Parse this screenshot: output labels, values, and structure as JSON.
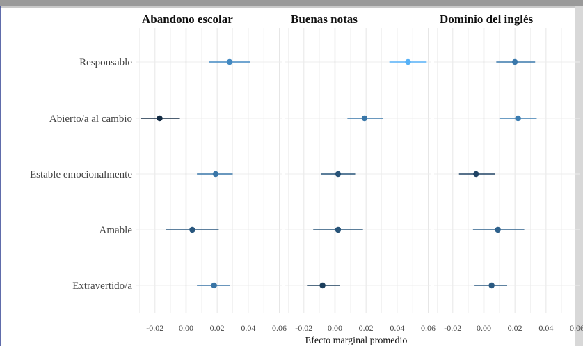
{
  "chart_data": {
    "type": "scatter",
    "style": "dot-and-whisker",
    "xlabel": "Efecto marginal promedio",
    "ylabel": "",
    "xlim": [
      -0.032,
      0.062
    ],
    "xticks": [
      -0.02,
      0.0,
      0.02,
      0.04,
      0.06
    ],
    "xtick_labels": [
      "-0.02",
      "0.00",
      "0.02",
      "0.04",
      "0.06"
    ],
    "categories": [
      "Responsable",
      "Abierto/a al cambio",
      "Estable emocionalmente",
      "Amable",
      "Extravertido/a"
    ],
    "grid": true,
    "zero_line": true,
    "color_scale": {
      "low": "#132b43",
      "high": "#56b1f7"
    },
    "panels": [
      {
        "title": "Abandono escolar",
        "points": [
          {
            "category": "Responsable",
            "estimate": 0.028,
            "lower": 0.015,
            "upper": 0.041
          },
          {
            "category": "Abierto/a al cambio",
            "estimate": -0.017,
            "lower": -0.029,
            "upper": -0.004
          },
          {
            "category": "Estable emocionalmente",
            "estimate": 0.019,
            "lower": 0.007,
            "upper": 0.03
          },
          {
            "category": "Amable",
            "estimate": 0.004,
            "lower": -0.013,
            "upper": 0.021
          },
          {
            "category": "Extravertido/a",
            "estimate": 0.018,
            "lower": 0.007,
            "upper": 0.028
          }
        ]
      },
      {
        "title": "Buenas notas",
        "points": [
          {
            "category": "Responsable",
            "estimate": 0.047,
            "lower": 0.035,
            "upper": 0.059
          },
          {
            "category": "Abierto/a al cambio",
            "estimate": 0.019,
            "lower": 0.008,
            "upper": 0.031
          },
          {
            "category": "Estable emocionalmente",
            "estimate": 0.002,
            "lower": -0.009,
            "upper": 0.013
          },
          {
            "category": "Amable",
            "estimate": 0.002,
            "lower": -0.014,
            "upper": 0.018
          },
          {
            "category": "Extravertido/a",
            "estimate": -0.008,
            "lower": -0.018,
            "upper": 0.003
          }
        ]
      },
      {
        "title": "Dominio del inglés",
        "points": [
          {
            "category": "Responsable",
            "estimate": 0.02,
            "lower": 0.008,
            "upper": 0.033
          },
          {
            "category": "Abierto/a al cambio",
            "estimate": 0.022,
            "lower": 0.01,
            "upper": 0.034
          },
          {
            "category": "Estable emocionalmente",
            "estimate": -0.005,
            "lower": -0.016,
            "upper": 0.007
          },
          {
            "category": "Amable",
            "estimate": 0.009,
            "lower": -0.007,
            "upper": 0.026
          },
          {
            "category": "Extravertido/a",
            "estimate": 0.005,
            "lower": -0.006,
            "upper": 0.015
          }
        ]
      }
    ]
  }
}
